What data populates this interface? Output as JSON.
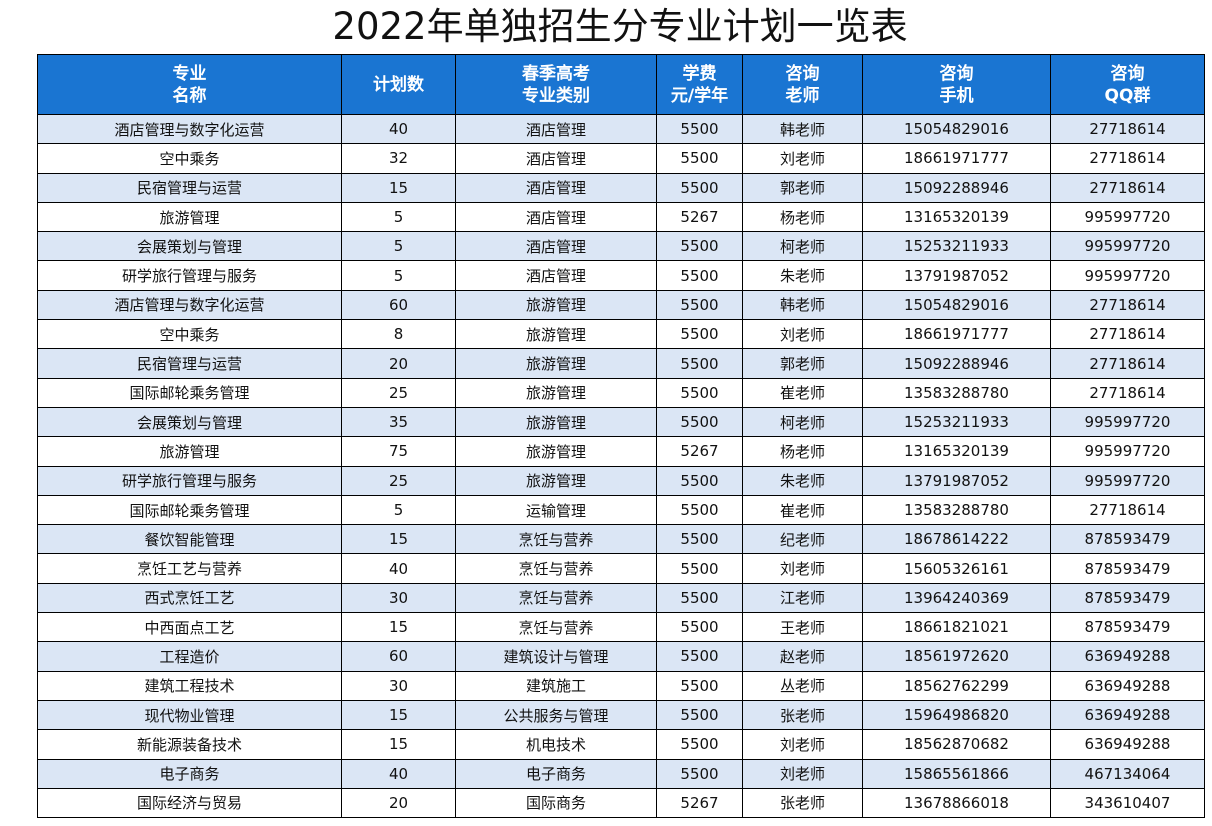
{
  "title": "2022年单独招生分专业计划一览表",
  "columns": [
    {
      "line1": "专业",
      "line2": "名称"
    },
    {
      "line1": "计划数",
      "line2": ""
    },
    {
      "line1": "春季高考",
      "line2": "专业类别"
    },
    {
      "line1": "学费",
      "line2": "元/学年"
    },
    {
      "line1": "咨询",
      "line2": "老师"
    },
    {
      "line1": "咨询",
      "line2": "手机"
    },
    {
      "line1": "咨询",
      "line2": "QQ群"
    }
  ],
  "rows": [
    [
      "酒店管理与数字化运营",
      "40",
      "酒店管理",
      "5500",
      "韩老师",
      "15054829016",
      "27718614"
    ],
    [
      "空中乘务",
      "32",
      "酒店管理",
      "5500",
      "刘老师",
      "18661971777",
      "27718614"
    ],
    [
      "民宿管理与运营",
      "15",
      "酒店管理",
      "5500",
      "郭老师",
      "15092288946",
      "27718614"
    ],
    [
      "旅游管理",
      "5",
      "酒店管理",
      "5267",
      "杨老师",
      "13165320139",
      "995997720"
    ],
    [
      "会展策划与管理",
      "5",
      "酒店管理",
      "5500",
      "柯老师",
      "15253211933",
      "995997720"
    ],
    [
      "研学旅行管理与服务",
      "5",
      "酒店管理",
      "5500",
      "朱老师",
      "13791987052",
      "995997720"
    ],
    [
      "酒店管理与数字化运营",
      "60",
      "旅游管理",
      "5500",
      "韩老师",
      "15054829016",
      "27718614"
    ],
    [
      "空中乘务",
      "8",
      "旅游管理",
      "5500",
      "刘老师",
      "18661971777",
      "27718614"
    ],
    [
      "民宿管理与运营",
      "20",
      "旅游管理",
      "5500",
      "郭老师",
      "15092288946",
      "27718614"
    ],
    [
      "国际邮轮乘务管理",
      "25",
      "旅游管理",
      "5500",
      "崔老师",
      "13583288780",
      "27718614"
    ],
    [
      "会展策划与管理",
      "35",
      "旅游管理",
      "5500",
      "柯老师",
      "15253211933",
      "995997720"
    ],
    [
      "旅游管理",
      "75",
      "旅游管理",
      "5267",
      "杨老师",
      "13165320139",
      "995997720"
    ],
    [
      "研学旅行管理与服务",
      "25",
      "旅游管理",
      "5500",
      "朱老师",
      "13791987052",
      "995997720"
    ],
    [
      "国际邮轮乘务管理",
      "5",
      "运输管理",
      "5500",
      "崔老师",
      "13583288780",
      "27718614"
    ],
    [
      "餐饮智能管理",
      "15",
      "烹饪与营养",
      "5500",
      "纪老师",
      "18678614222",
      "878593479"
    ],
    [
      "烹饪工艺与营养",
      "40",
      "烹饪与营养",
      "5500",
      "刘老师",
      "15605326161",
      "878593479"
    ],
    [
      "西式烹饪工艺",
      "30",
      "烹饪与营养",
      "5500",
      "江老师",
      "13964240369",
      "878593479"
    ],
    [
      "中西面点工艺",
      "15",
      "烹饪与营养",
      "5500",
      "王老师",
      "18661821021",
      "878593479"
    ],
    [
      "工程造价",
      "60",
      "建筑设计与管理",
      "5500",
      "赵老师",
      "18561972620",
      "636949288"
    ],
    [
      "建筑工程技术",
      "30",
      "建筑施工",
      "5500",
      "丛老师",
      "18562762299",
      "636949288"
    ],
    [
      "现代物业管理",
      "15",
      "公共服务与管理",
      "5500",
      "张老师",
      "15964986820",
      "636949288"
    ],
    [
      "新能源装备技术",
      "15",
      "机电技术",
      "5500",
      "刘老师",
      "18562870682",
      "636949288"
    ],
    [
      "电子商务",
      "40",
      "电子商务",
      "5500",
      "刘老师",
      "15865561866",
      "467134064"
    ],
    [
      "国际经济与贸易",
      "20",
      "国际商务",
      "5267",
      "张老师",
      "13678866018",
      "343610407"
    ]
  ]
}
